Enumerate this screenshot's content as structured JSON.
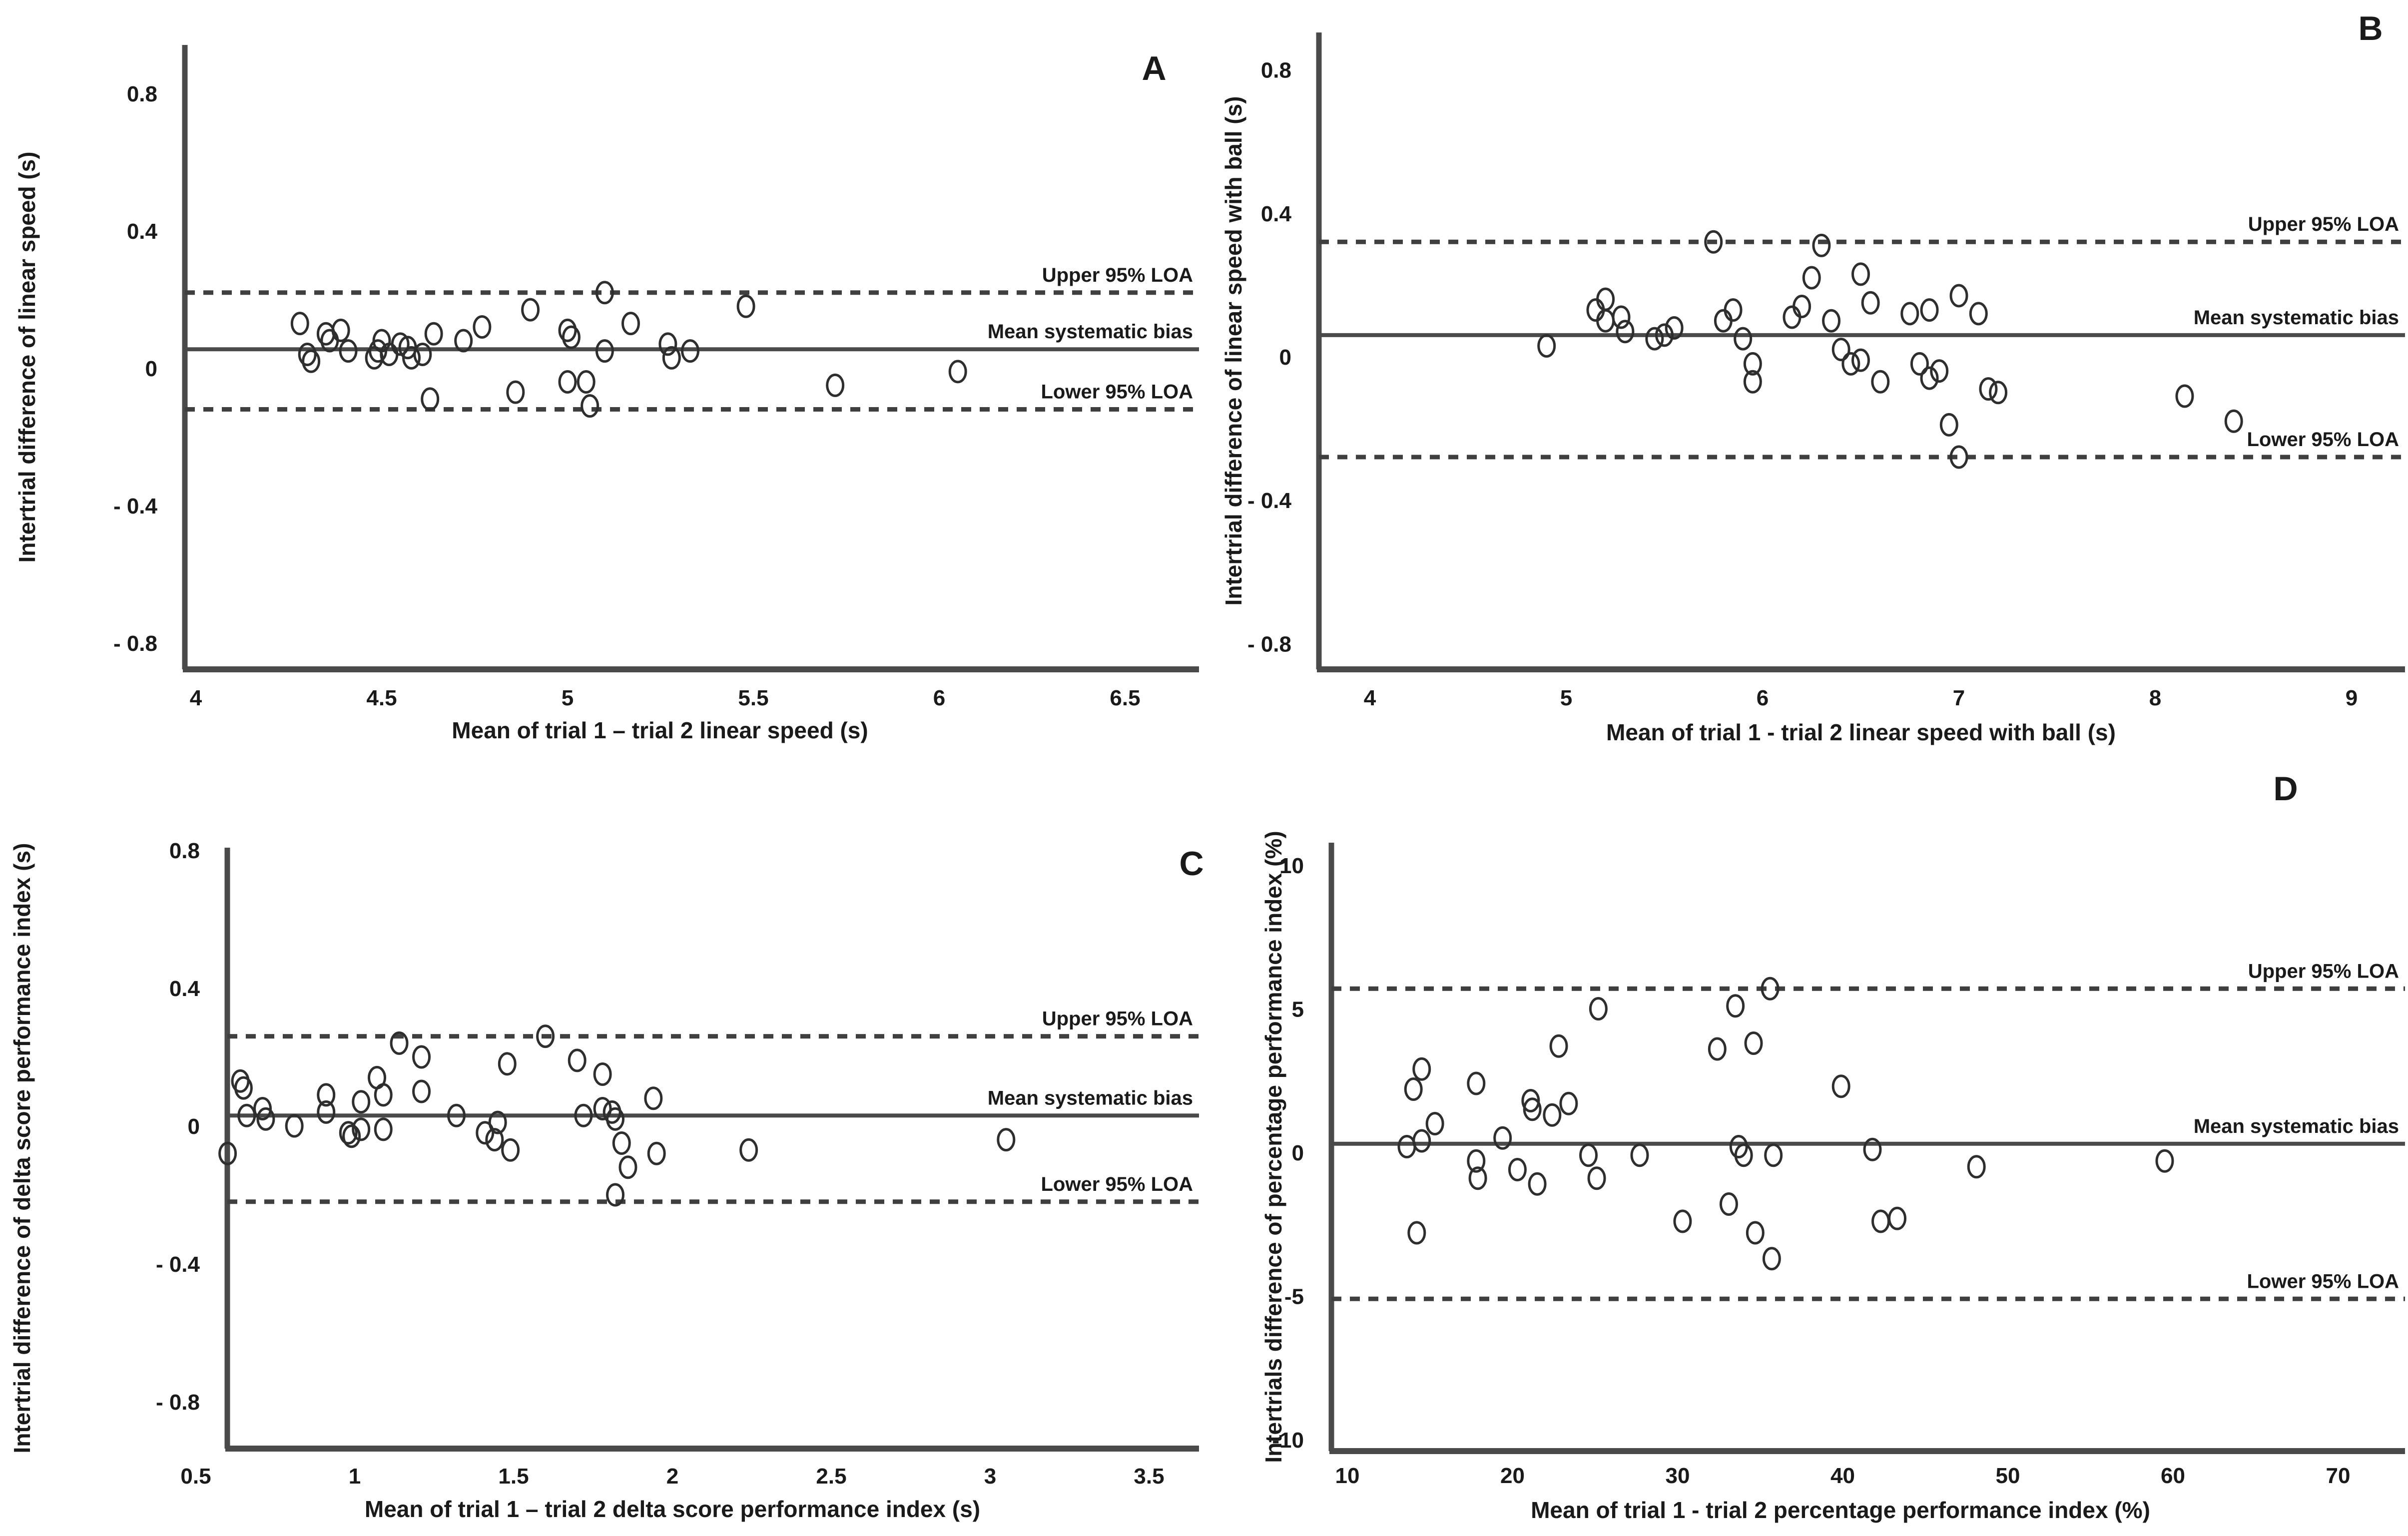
{
  "figure": {
    "background": "#ffffff",
    "point_color": "#2e2e2e",
    "loa_line_color": "#3f3f3f",
    "bias_line_color": "#4a4a4a",
    "axis_color": "#4a4a4a",
    "text_color": "#1a1a1a"
  },
  "chart_data": [
    {
      "type": "scatter",
      "panel_letter": "A",
      "xlabel": "Mean of trial 1 – trial 2 linear speed (s)",
      "ylabel": "Intertrial difference of linear speed (s)",
      "xticks": [
        4,
        4.5,
        5,
        5.5,
        6,
        6.5
      ],
      "xtick_labels": [
        "4",
        "4.5",
        "5",
        "5.5",
        "6",
        "6.5"
      ],
      "yticks": [
        0.8,
        0.4,
        0,
        -0.4,
        -0.8
      ],
      "ytick_labels": [
        "0.8",
        "0.4",
        "0",
        "- 0.4",
        "- 0.8"
      ],
      "xlim": [
        3.97,
        6.7
      ],
      "ylim": [
        -0.88,
        0.94
      ],
      "grid": false,
      "upper_loa": 0.22,
      "bias": 0.055,
      "lower_loa": -0.12,
      "upper_loa_label": "Upper 95% LOA",
      "bias_label": "Mean systematic bias",
      "lower_loa_label": "Lower 95% LOA",
      "points": [
        [
          4.28,
          0.13
        ],
        [
          4.3,
          0.04
        ],
        [
          4.31,
          0.02
        ],
        [
          4.35,
          0.1
        ],
        [
          4.36,
          0.08
        ],
        [
          4.39,
          0.11
        ],
        [
          4.41,
          0.05
        ],
        [
          4.48,
          0.03
        ],
        [
          4.49,
          0.05
        ],
        [
          4.5,
          0.08
        ],
        [
          4.52,
          0.04
        ],
        [
          4.55,
          0.07
        ],
        [
          4.57,
          0.06
        ],
        [
          4.58,
          0.03
        ],
        [
          4.61,
          0.04
        ],
        [
          4.63,
          -0.09
        ],
        [
          4.64,
          0.1
        ],
        [
          4.72,
          0.08
        ],
        [
          4.77,
          0.12
        ],
        [
          4.86,
          -0.07
        ],
        [
          4.9,
          0.17
        ],
        [
          5.0,
          0.11
        ],
        [
          5.01,
          0.09
        ],
        [
          5.0,
          -0.04
        ],
        [
          5.05,
          -0.04
        ],
        [
          5.06,
          -0.11
        ],
        [
          5.1,
          0.05
        ],
        [
          5.1,
          0.22
        ],
        [
          5.17,
          0.13
        ],
        [
          5.27,
          0.07
        ],
        [
          5.28,
          0.03
        ],
        [
          5.33,
          0.05
        ],
        [
          5.48,
          0.18
        ],
        [
          5.72,
          -0.05
        ],
        [
          6.05,
          -0.01
        ]
      ]
    },
    {
      "type": "scatter",
      "panel_letter": "B",
      "xlabel": "Mean of trial 1 - trial 2 linear speed with ball (s)",
      "ylabel": "Intertrial difference of linear speed with ball (s)",
      "xticks": [
        4,
        5,
        6,
        7,
        8,
        9
      ],
      "xtick_labels": [
        "4",
        "5",
        "6",
        "7",
        "8",
        "9"
      ],
      "yticks": [
        0.8,
        0.4,
        0,
        -0.4,
        -0.8
      ],
      "ytick_labels": [
        "0.8",
        "0.4",
        "0",
        "- 0.4",
        "- 0.8"
      ],
      "xlim": [
        3.74,
        9.29
      ],
      "ylim": [
        -0.87,
        0.9
      ],
      "grid": false,
      "upper_loa": 0.32,
      "bias": 0.06,
      "lower_loa": -0.28,
      "upper_loa_label": "Upper 95% LOA",
      "bias_label": "Mean systematic bias",
      "lower_loa_label": "Lower 95% LOA",
      "points": [
        [
          4.9,
          0.03
        ],
        [
          5.15,
          0.13
        ],
        [
          5.2,
          0.16
        ],
        [
          5.2,
          0.1
        ],
        [
          5.28,
          0.11
        ],
        [
          5.3,
          0.07
        ],
        [
          5.45,
          0.05
        ],
        [
          5.5,
          0.06
        ],
        [
          5.55,
          0.08
        ],
        [
          5.75,
          0.32
        ],
        [
          5.8,
          0.1
        ],
        [
          5.85,
          0.13
        ],
        [
          5.9,
          0.05
        ],
        [
          5.95,
          -0.02
        ],
        [
          5.95,
          -0.07
        ],
        [
          6.15,
          0.11
        ],
        [
          6.2,
          0.14
        ],
        [
          6.25,
          0.22
        ],
        [
          6.3,
          0.31
        ],
        [
          6.35,
          0.1
        ],
        [
          6.4,
          0.02
        ],
        [
          6.45,
          -0.02
        ],
        [
          6.5,
          -0.01
        ],
        [
          6.5,
          0.23
        ],
        [
          6.55,
          0.15
        ],
        [
          6.6,
          -0.07
        ],
        [
          6.75,
          0.12
        ],
        [
          6.85,
          0.13
        ],
        [
          6.8,
          -0.02
        ],
        [
          6.85,
          -0.06
        ],
        [
          6.9,
          -0.04
        ],
        [
          7.0,
          0.17
        ],
        [
          7.1,
          0.12
        ],
        [
          6.95,
          -0.19
        ],
        [
          7.0,
          -0.28
        ],
        [
          7.15,
          -0.09
        ],
        [
          7.2,
          -0.1
        ],
        [
          8.15,
          -0.11
        ],
        [
          8.4,
          -0.18
        ]
      ]
    },
    {
      "type": "scatter",
      "panel_letter": "C",
      "xlabel": "Mean of trial 1 – trial 2 delta score performance index (s)",
      "ylabel": "Intertrial difference of delta score performance index (s)",
      "xticks": [
        0.5,
        1,
        1.5,
        2,
        2.5,
        3,
        3.5
      ],
      "xtick_labels": [
        "0.5",
        "1",
        "1.5",
        "2",
        "2.5",
        "3",
        "3.5"
      ],
      "yticks": [
        0.8,
        0.4,
        0,
        -0.4,
        -0.8
      ],
      "ytick_labels": [
        "0.8",
        "0.4",
        "0",
        "- 0.4",
        "- 0.8"
      ],
      "xlim": [
        0.4,
        3.66
      ],
      "ylim": [
        -0.94,
        0.8
      ],
      "grid": false,
      "upper_loa": 0.26,
      "bias": 0.03,
      "lower_loa": -0.22,
      "upper_loa_label": "Upper 95% LOA",
      "bias_label": "Mean systematic bias",
      "lower_loa_label": "Lower 95% LOA",
      "points": [
        [
          0.6,
          -0.08
        ],
        [
          0.64,
          0.13
        ],
        [
          0.65,
          0.11
        ],
        [
          0.66,
          0.03
        ],
        [
          0.71,
          0.05
        ],
        [
          0.72,
          0.02
        ],
        [
          0.81,
          0.0
        ],
        [
          0.91,
          0.09
        ],
        [
          0.91,
          0.04
        ],
        [
          0.98,
          -0.02
        ],
        [
          0.99,
          -0.03
        ],
        [
          1.02,
          -0.01
        ],
        [
          1.02,
          0.07
        ],
        [
          1.07,
          0.14
        ],
        [
          1.09,
          0.09
        ],
        [
          1.09,
          -0.01
        ],
        [
          1.14,
          0.24
        ],
        [
          1.21,
          0.1
        ],
        [
          1.21,
          0.2
        ],
        [
          1.32,
          0.03
        ],
        [
          1.41,
          -0.02
        ],
        [
          1.44,
          -0.04
        ],
        [
          1.45,
          0.01
        ],
        [
          1.48,
          0.18
        ],
        [
          1.49,
          -0.07
        ],
        [
          1.6,
          0.26
        ],
        [
          1.7,
          0.19
        ],
        [
          1.72,
          0.03
        ],
        [
          1.78,
          0.15
        ],
        [
          1.78,
          0.05
        ],
        [
          1.81,
          0.04
        ],
        [
          1.82,
          0.02
        ],
        [
          1.84,
          -0.05
        ],
        [
          1.86,
          -0.12
        ],
        [
          1.82,
          -0.2
        ],
        [
          1.94,
          0.08
        ],
        [
          1.95,
          -0.08
        ],
        [
          2.24,
          -0.07
        ],
        [
          3.05,
          -0.04
        ]
      ]
    },
    {
      "type": "scatter",
      "panel_letter": "D",
      "xlabel": "Mean of trial 1 - trial 2 percentage performance index (%)",
      "ylabel": "Intertrials difference of percentage performance index (%)",
      "xticks": [
        10,
        20,
        30,
        40,
        50,
        60,
        70
      ],
      "xtick_labels": [
        "10",
        "20",
        "30",
        "40",
        "50",
        "60",
        "70"
      ],
      "yticks": [
        10,
        5,
        0,
        -5,
        -10
      ],
      "ytick_labels": [
        "10",
        "5",
        "0",
        "-5",
        "-10"
      ],
      "xlim": [
        7.8,
        74.3
      ],
      "ylim": [
        -10.4,
        10.7
      ],
      "grid": false,
      "upper_loa": 5.7,
      "bias": 0.3,
      "lower_loa": -5.1,
      "upper_loa_label": "Upper 95% LOA",
      "bias_label": "Mean systematic bias",
      "lower_loa_label": "Lower 95% LOA",
      "points": [
        [
          13.6,
          0.2
        ],
        [
          14.0,
          2.2
        ],
        [
          14.5,
          2.9
        ],
        [
          14.5,
          0.4
        ],
        [
          15.3,
          1.0
        ],
        [
          14.2,
          -2.8
        ],
        [
          17.8,
          2.4
        ],
        [
          17.8,
          -0.3
        ],
        [
          17.9,
          -0.9
        ],
        [
          19.4,
          0.5
        ],
        [
          20.3,
          -0.6
        ],
        [
          21.1,
          1.8
        ],
        [
          21.2,
          1.5
        ],
        [
          21.5,
          -1.1
        ],
        [
          22.4,
          1.3
        ],
        [
          22.8,
          3.7
        ],
        [
          23.4,
          1.7
        ],
        [
          24.6,
          -0.1
        ],
        [
          25.1,
          -0.9
        ],
        [
          25.2,
          5.0
        ],
        [
          27.7,
          -0.1
        ],
        [
          30.3,
          -2.4
        ],
        [
          32.4,
          3.6
        ],
        [
          33.1,
          -1.8
        ],
        [
          33.5,
          5.1
        ],
        [
          33.7,
          0.2
        ],
        [
          34.0,
          -0.1
        ],
        [
          34.6,
          3.8
        ],
        [
          34.7,
          -2.8
        ],
        [
          35.6,
          5.7
        ],
        [
          35.7,
          -3.7
        ],
        [
          35.8,
          -0.1
        ],
        [
          39.9,
          2.3
        ],
        [
          41.8,
          0.1
        ],
        [
          42.3,
          -2.4
        ],
        [
          43.3,
          -2.3
        ],
        [
          48.1,
          -0.5
        ],
        [
          59.5,
          -0.3
        ]
      ]
    }
  ]
}
